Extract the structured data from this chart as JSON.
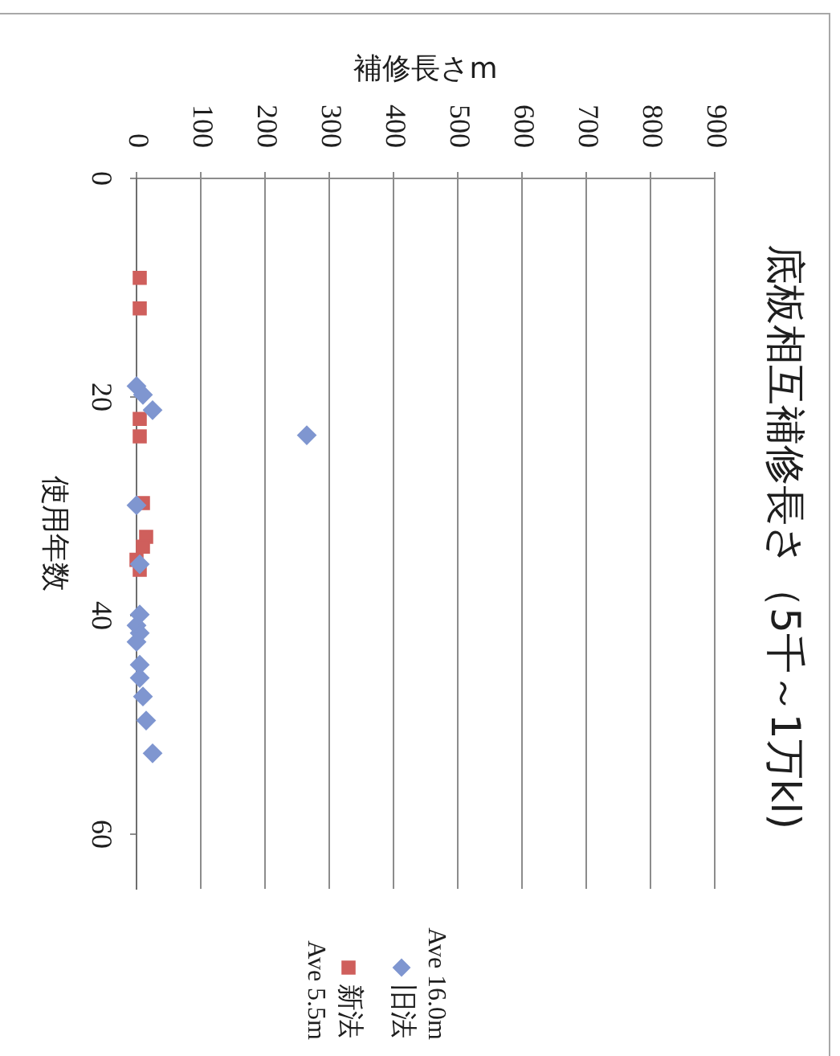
{
  "chart_data": {
    "type": "scatter",
    "title": "底板相互補修長さ（5千～1万kl)",
    "xlabel": "補修長さm",
    "ylabel": "使用年数",
    "xlim": [
      0,
      900
    ],
    "xticks": [
      0,
      100,
      200,
      300,
      400,
      500,
      600,
      700,
      800,
      900
    ],
    "ylim": [
      65,
      0
    ],
    "yticks": [
      0,
      20,
      40,
      60
    ],
    "grid": "x",
    "legend": "bottom",
    "series": [
      {
        "name": "旧法",
        "color": "#7f96d0",
        "marker": "diamond",
        "x": [
          0,
          10,
          25,
          265,
          0,
          5,
          5,
          0,
          5,
          0,
          5,
          5,
          10,
          15,
          25
        ],
        "values": [
          19.0,
          19.8,
          21.2,
          23.5,
          29.9,
          35.3,
          39.9,
          40.9,
          41.6,
          42.4,
          44.5,
          45.7,
          47.4,
          49.6,
          52.6
        ]
      },
      {
        "name": "新法",
        "color": "#cf5f5c",
        "marker": "square",
        "x": [
          5,
          5,
          5,
          5,
          10,
          15,
          10,
          0,
          5
        ],
        "values": [
          9.1,
          11.9,
          22.0,
          23.6,
          29.7,
          32.8,
          33.7,
          34.9,
          35.8
        ]
      }
    ],
    "annotations": [
      "Ave 16.0m",
      "Ave 5.5m"
    ]
  }
}
